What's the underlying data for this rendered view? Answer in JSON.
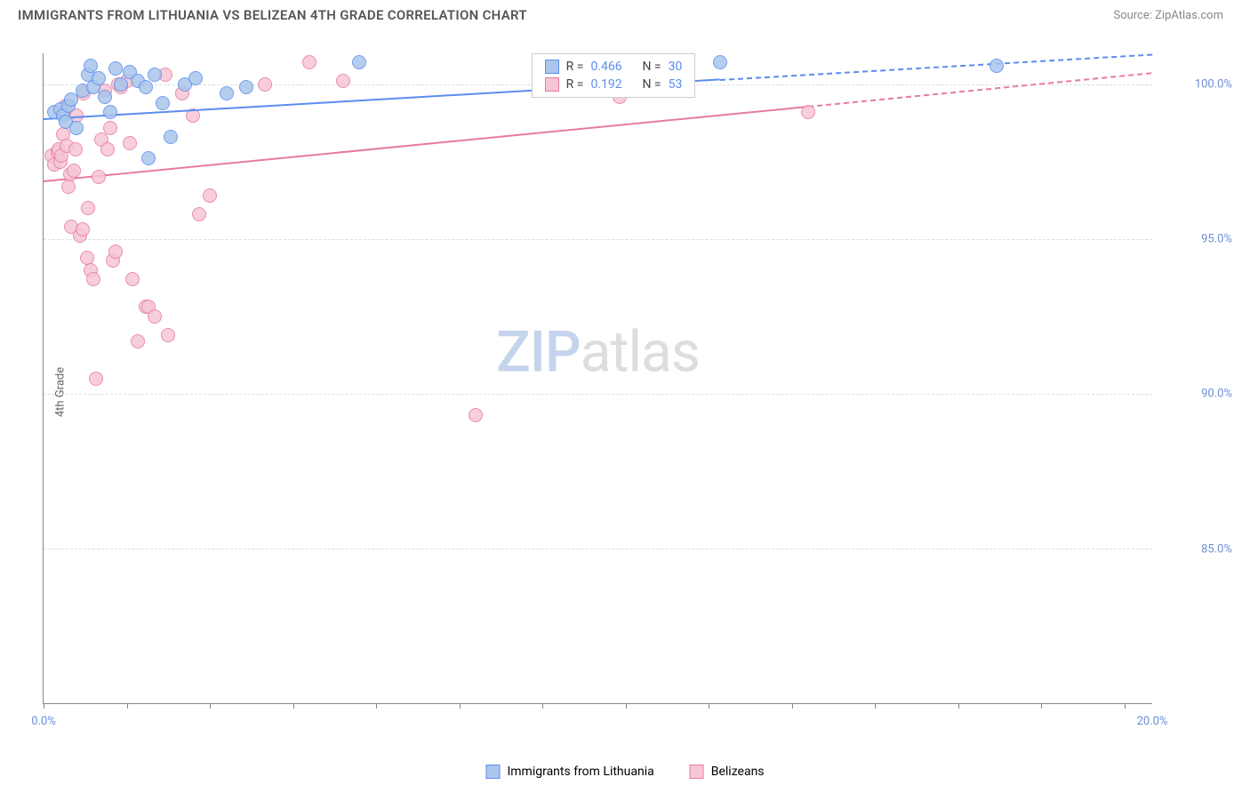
{
  "header": {
    "title": "IMMIGRANTS FROM LITHUANIA VS BELIZEAN 4TH GRADE CORRELATION CHART",
    "source": "Source: ZipAtlas.com"
  },
  "axes": {
    "y_label": "4th Grade",
    "x_min": 0.0,
    "x_max": 20.0,
    "y_min": 80.0,
    "y_max": 101.0,
    "y_ticks": [
      85.0,
      90.0,
      95.0,
      100.0
    ],
    "y_tick_labels": [
      "85.0%",
      "90.0%",
      "95.0%",
      "100.0%"
    ],
    "x_tick_positions": [
      0,
      1.5,
      3.0,
      4.5,
      6.0,
      7.5,
      9.0,
      10.5,
      12.0,
      13.5,
      15.0,
      16.5,
      18.0,
      19.5
    ],
    "x_min_label": "0.0%",
    "x_max_label": "20.0%"
  },
  "grid": {
    "line_color": "#dddddd"
  },
  "watermark": {
    "part1": "ZIP",
    "part2": "atlas"
  },
  "series": [
    {
      "name": "Immigrants from Lithuania",
      "fill": "#aac6ec",
      "stroke": "#5b8def",
      "marker_radius": 8,
      "R": "0.466",
      "N": "30",
      "trend": {
        "x1": 0.0,
        "y1": 98.9,
        "x2": 20.0,
        "y2": 101.0,
        "solid_until_x": 12.2
      },
      "points": [
        [
          0.2,
          99.1
        ],
        [
          0.3,
          99.2
        ],
        [
          0.35,
          99.0
        ],
        [
          0.4,
          98.8
        ],
        [
          0.45,
          99.3
        ],
        [
          0.5,
          99.5
        ],
        [
          0.6,
          98.6
        ],
        [
          0.7,
          99.8
        ],
        [
          0.8,
          100.3
        ],
        [
          0.85,
          100.6
        ],
        [
          0.9,
          99.9
        ],
        [
          1.0,
          100.2
        ],
        [
          1.1,
          99.6
        ],
        [
          1.2,
          99.1
        ],
        [
          1.3,
          100.5
        ],
        [
          1.4,
          100.0
        ],
        [
          1.55,
          100.4
        ],
        [
          1.7,
          100.1
        ],
        [
          1.85,
          99.9
        ],
        [
          1.9,
          97.6
        ],
        [
          2.0,
          100.3
        ],
        [
          2.15,
          99.4
        ],
        [
          2.3,
          98.3
        ],
        [
          2.55,
          100.0
        ],
        [
          2.75,
          100.2
        ],
        [
          3.3,
          99.7
        ],
        [
          3.65,
          99.9
        ],
        [
          5.7,
          100.7
        ],
        [
          12.2,
          100.7
        ],
        [
          17.2,
          100.6
        ]
      ]
    },
    {
      "name": "Belizeans",
      "fill": "#f6c6d4",
      "stroke": "#e77ba0",
      "marker_radius": 8,
      "R": "0.192",
      "N": "53",
      "trend": {
        "x1": 0.0,
        "y1": 96.9,
        "x2": 20.0,
        "y2": 100.4,
        "solid_until_x": 13.8
      },
      "points": [
        [
          0.15,
          97.7
        ],
        [
          0.2,
          97.4
        ],
        [
          0.25,
          97.8
        ],
        [
          0.28,
          97.9
        ],
        [
          0.3,
          97.5
        ],
        [
          0.32,
          97.7
        ],
        [
          0.35,
          98.4
        ],
        [
          0.38,
          99.1
        ],
        [
          0.4,
          99.3
        ],
        [
          0.42,
          98.0
        ],
        [
          0.45,
          96.7
        ],
        [
          0.48,
          97.1
        ],
        [
          0.5,
          95.4
        ],
        [
          0.55,
          97.2
        ],
        [
          0.58,
          97.9
        ],
        [
          0.6,
          99.0
        ],
        [
          0.65,
          95.1
        ],
        [
          0.7,
          95.3
        ],
        [
          0.72,
          99.7
        ],
        [
          0.78,
          94.4
        ],
        [
          0.8,
          96.0
        ],
        [
          0.85,
          94.0
        ],
        [
          0.9,
          93.7
        ],
        [
          0.95,
          90.5
        ],
        [
          1.0,
          97.0
        ],
        [
          1.05,
          98.2
        ],
        [
          1.1,
          99.8
        ],
        [
          1.15,
          97.9
        ],
        [
          1.2,
          98.6
        ],
        [
          1.25,
          94.3
        ],
        [
          1.3,
          94.6
        ],
        [
          1.35,
          100.0
        ],
        [
          1.4,
          99.9
        ],
        [
          1.5,
          100.1
        ],
        [
          1.55,
          98.1
        ],
        [
          1.6,
          93.7
        ],
        [
          1.7,
          91.7
        ],
        [
          1.85,
          92.8
        ],
        [
          1.9,
          92.8
        ],
        [
          2.0,
          92.5
        ],
        [
          2.2,
          100.3
        ],
        [
          2.25,
          91.9
        ],
        [
          2.5,
          99.7
        ],
        [
          2.7,
          99.0
        ],
        [
          2.8,
          95.8
        ],
        [
          3.0,
          96.4
        ],
        [
          4.0,
          100.0
        ],
        [
          4.8,
          100.7
        ],
        [
          5.4,
          100.1
        ],
        [
          7.8,
          89.3
        ],
        [
          10.4,
          99.6
        ],
        [
          11.2,
          100.4
        ],
        [
          13.8,
          99.1
        ]
      ]
    }
  ],
  "stats_box": {
    "rows": [
      {
        "swatch_fill": "#aac6ec",
        "swatch_stroke": "#5b8def",
        "r_label": "R =",
        "r_val": "0.466",
        "n_label": "N =",
        "n_val": "30"
      },
      {
        "swatch_fill": "#f6c6d4",
        "swatch_stroke": "#e77ba0",
        "r_label": "R =",
        "r_val": "0.192",
        "n_label": "N =",
        "n_val": "53"
      }
    ]
  },
  "bottom_legend": [
    {
      "fill": "#aac6ec",
      "stroke": "#5b8def",
      "label": "Immigrants from Lithuania"
    },
    {
      "fill": "#f6c6d4",
      "stroke": "#e77ba0",
      "label": "Belizeans"
    }
  ]
}
